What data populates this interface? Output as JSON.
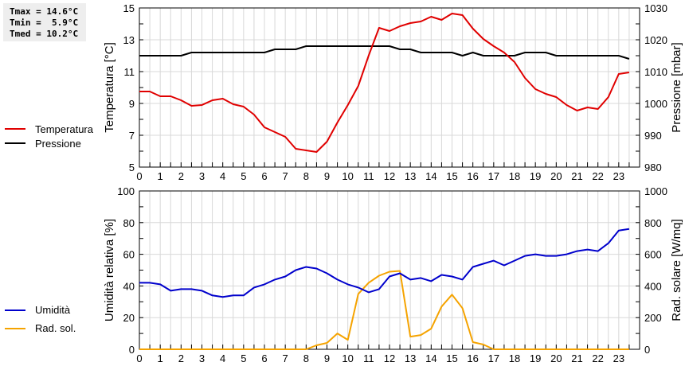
{
  "stats": {
    "lines": [
      "Tmax = 14.6°C",
      "Tmin =  5.9°C",
      "Tmed = 10.2°C"
    ]
  },
  "legend_top": [
    {
      "label": "Temperatura",
      "color": "#e00000"
    },
    {
      "label": "Pressione",
      "color": "#000000"
    }
  ],
  "legend_bottom": [
    {
      "label": "Umidità",
      "color": "#0000cc"
    },
    {
      "label": "Rad. sol.",
      "color": "#f5a300"
    }
  ],
  "chart_data": [
    {
      "type": "line",
      "title": "",
      "xlabel": "",
      "ylabel": "Temperatura [°C]",
      "y2label": "Pressione [mbar]",
      "ylim": [
        5,
        15
      ],
      "y2lim": [
        980,
        1030
      ],
      "yticks": [
        5,
        7,
        9,
        11,
        13,
        15
      ],
      "y2ticks": [
        980,
        990,
        1000,
        1010,
        1020,
        1030
      ],
      "xticks": [
        0,
        1,
        2,
        3,
        4,
        5,
        6,
        7,
        8,
        9,
        10,
        11,
        12,
        13,
        14,
        15,
        16,
        17,
        18,
        19,
        20,
        21,
        22,
        23
      ],
      "grid": true,
      "legend_position": "left",
      "x": [
        0,
        0.5,
        1,
        1.5,
        2,
        2.5,
        3,
        3.5,
        4,
        4.5,
        5,
        5.5,
        6,
        6.5,
        7,
        7.5,
        8,
        8.5,
        9,
        9.5,
        10,
        10.5,
        11,
        11.5,
        12,
        12.5,
        13,
        13.5,
        14,
        14.5,
        15,
        15.5,
        16,
        16.5,
        17,
        17.5,
        18,
        18.5,
        19,
        19.5,
        20,
        20.5,
        21,
        21.5,
        22,
        22.5,
        23,
        23.5
      ],
      "series": [
        {
          "name": "Temperatura",
          "axis": "left",
          "color": "#e00000",
          "values": [
            9.75,
            9.75,
            9.45,
            9.45,
            9.2,
            8.85,
            8.9,
            9.2,
            9.3,
            8.95,
            8.8,
            8.3,
            7.5,
            7.2,
            6.9,
            6.15,
            6.05,
            5.95,
            6.6,
            7.8,
            8.9,
            10.1,
            12.0,
            13.75,
            13.55,
            13.85,
            14.05,
            14.15,
            14.45,
            14.25,
            14.65,
            14.55,
            13.7,
            13.05,
            12.6,
            12.2,
            11.6,
            10.6,
            9.9,
            9.6,
            9.4,
            8.9,
            8.55,
            8.75,
            8.65,
            9.4,
            10.85,
            10.95
          ]
        },
        {
          "name": "Pressione",
          "axis": "right",
          "color": "#000000",
          "values": [
            1015,
            1015,
            1015,
            1015,
            1015,
            1016,
            1016,
            1016,
            1016,
            1016,
            1016,
            1016,
            1016,
            1017,
            1017,
            1017,
            1018,
            1018,
            1018,
            1018,
            1018,
            1018,
            1018,
            1018,
            1018,
            1017,
            1017,
            1016,
            1016,
            1016,
            1016,
            1015,
            1016,
            1015,
            1015,
            1015,
            1015,
            1016,
            1016,
            1016,
            1015,
            1015,
            1015,
            1015,
            1015,
            1015,
            1015,
            1014
          ]
        }
      ]
    },
    {
      "type": "line",
      "title": "",
      "xlabel": "",
      "ylabel": "Umidità relativa [%]",
      "y2label": "Rad. solare [W/mq]",
      "ylim": [
        0,
        100
      ],
      "y2lim": [
        0,
        1000
      ],
      "yticks": [
        0,
        20,
        40,
        60,
        80,
        100
      ],
      "y2ticks": [
        0,
        200,
        400,
        600,
        800,
        1000
      ],
      "xticks": [
        0,
        1,
        2,
        3,
        4,
        5,
        6,
        7,
        8,
        9,
        10,
        11,
        12,
        13,
        14,
        15,
        16,
        17,
        18,
        19,
        20,
        21,
        22,
        23
      ],
      "grid": true,
      "legend_position": "left",
      "x": [
        0,
        0.5,
        1,
        1.5,
        2,
        2.5,
        3,
        3.5,
        4,
        4.5,
        5,
        5.5,
        6,
        6.5,
        7,
        7.5,
        8,
        8.5,
        9,
        9.5,
        10,
        10.5,
        11,
        11.5,
        12,
        12.5,
        13,
        13.5,
        14,
        14.5,
        15,
        15.5,
        16,
        16.5,
        17,
        17.5,
        18,
        18.5,
        19,
        19.5,
        20,
        20.5,
        21,
        21.5,
        22,
        22.5,
        23,
        23.5
      ],
      "series": [
        {
          "name": "Umidità",
          "axis": "left",
          "color": "#0000cc",
          "values": [
            42,
            42,
            41,
            37,
            38,
            38,
            37,
            34,
            33,
            34,
            34,
            39,
            41,
            44,
            46,
            50,
            52,
            51,
            48,
            44,
            41,
            39,
            36,
            38,
            46,
            48,
            44,
            45,
            43,
            47,
            46,
            44,
            52,
            54,
            56,
            53,
            56,
            59,
            60,
            59,
            59,
            60,
            62,
            63,
            62,
            67,
            75,
            76
          ]
        },
        {
          "name": "Rad. sol.",
          "axis": "right",
          "color": "#f5a300",
          "values": [
            0,
            0,
            0,
            0,
            0,
            0,
            0,
            0,
            0,
            0,
            0,
            0,
            0,
            0,
            0,
            0,
            0,
            25,
            40,
            100,
            60,
            350,
            420,
            465,
            490,
            495,
            80,
            90,
            130,
            270,
            345,
            260,
            45,
            30,
            0,
            0,
            0,
            0,
            0,
            0,
            0,
            0,
            0,
            0,
            0,
            0,
            0,
            0
          ]
        }
      ]
    }
  ]
}
